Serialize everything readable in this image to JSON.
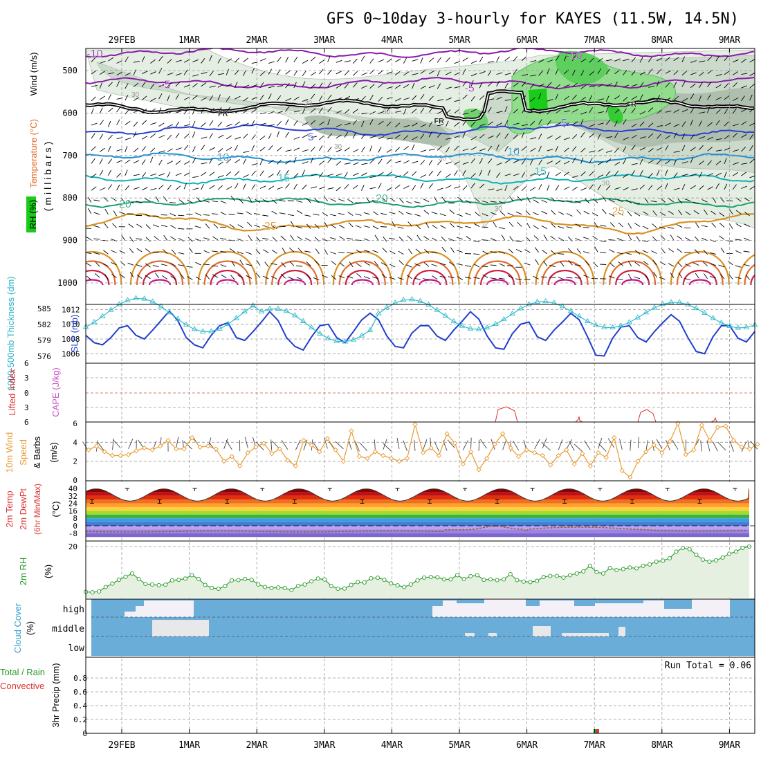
{
  "title": "GFS 0~10day 3-hourly for KAYES (11.5W, 14.5N)",
  "dates": [
    "29FEB",
    "1MAR",
    "2MAR",
    "3MAR",
    "4MAR",
    "5MAR",
    "6MAR",
    "7MAR",
    "8MAR",
    "9MAR"
  ],
  "colors": {
    "frame": "#000000",
    "grid": "#999999",
    "thickness": "#33bbcc",
    "slp": "#1f3fcc",
    "lifted": "#dd3333",
    "wind10": "#e89a30",
    "rh2m": "#2a9a2a",
    "cloud": "#6aadd8",
    "cloud_gap": "#f3f0f8",
    "precip_total": "#2a9a2a",
    "precip_conv": "#dd3333",
    "rh_fill": "#e6f0e0"
  },
  "upper_panel": {
    "rh_label": "RH (%)",
    "temp_label": "Temperature (°C)",
    "wind_label": "Wind (m/s)",
    "axis_label": "(millibars)",
    "pressure_ticks": [
      500,
      600,
      700,
      800,
      900,
      1000
    ],
    "isotherm_labels": [
      {
        "text": "-10",
        "color": "#8a1aa8",
        "p": 459,
        "day": -0.4
      },
      {
        "text": "-10",
        "color": "#8a1aa8",
        "p": 463,
        "day": 6.7
      },
      {
        "text": "-5",
        "color": "#8a1aa8",
        "p": 532,
        "day": 0.65
      },
      {
        "text": "-5",
        "color": "#8a1aa8",
        "p": 540,
        "day": 5.15
      },
      {
        "text": "FR",
        "color": "#000000",
        "p": 598,
        "day": 1.5
      },
      {
        "text": "FR",
        "color": "#000000",
        "p": 615,
        "day": 4.7
      },
      {
        "text": "FR",
        "color": "#000000",
        "p": 576,
        "day": 7.55
      },
      {
        "text": "5",
        "color": "#2a40d0",
        "p": 655,
        "day": 2.8
      },
      {
        "text": "5",
        "color": "#2a40d0",
        "p": 622,
        "day": 6.55
      },
      {
        "text": "10",
        "color": "#1f8fd0",
        "p": 703,
        "day": 1.5
      },
      {
        "text": "10",
        "color": "#1f8fd0",
        "p": 690,
        "day": 5.8
      },
      {
        "text": "15",
        "color": "#10b0b8",
        "p": 752,
        "day": 2.4
      },
      {
        "text": "15",
        "color": "#10b0b8",
        "p": 736,
        "day": 6.2
      },
      {
        "text": "20",
        "color": "#1aa070",
        "p": 813,
        "day": 0.05
      },
      {
        "text": "20",
        "color": "#1aa070",
        "p": 800,
        "day": 3.85
      },
      {
        "text": "25",
        "color": "#d89020",
        "p": 865,
        "day": 2.2
      },
      {
        "text": "25",
        "color": "#d89020",
        "p": 830,
        "day": 7.35
      }
    ],
    "rh_labels": [
      "30",
      "30",
      "30",
      "30",
      "30",
      "30",
      "30"
    ]
  },
  "slp_panel": {
    "left_label": "1000-500mb Thickness (dm)",
    "right_label": "SLP (mb)",
    "thickness_ticks": [
      585,
      582,
      579,
      576
    ],
    "slp_ticks": [
      1012,
      1010,
      1008,
      1006
    ]
  },
  "cape_panel": {
    "label1": "Lifted Index",
    "label2": "CAPE (J/kg)",
    "ticks": [
      "6",
      "3",
      "0",
      "3",
      "6"
    ]
  },
  "wind10_panel": {
    "label1": "10m Wind",
    "label2": "Speed",
    "label3": "& Barbs",
    "unit": "(m/s)",
    "ticks": [
      0,
      2,
      4,
      6
    ]
  },
  "temp_panel": {
    "label1": "2m Temp",
    "label2": "2m DewPt",
    "label3": "(6hr Min/Max)",
    "unit": "(°C)",
    "ticks": [
      40,
      32,
      24,
      16,
      8,
      0,
      -8
    ]
  },
  "rh_panel": {
    "label": "2m RH",
    "unit": "(%)",
    "ticks": [
      20
    ]
  },
  "cloud_panel": {
    "label1": "Cloud Cover",
    "label2": "(%)",
    "levels": [
      "high",
      "middle",
      "low"
    ]
  },
  "precip_panel": {
    "label1": "Total / Rain",
    "label2": "Convective",
    "label3": "3hr Precip (mm)",
    "ticks": [
      "0",
      "0.2",
      "0.4",
      "0.6",
      "0.8"
    ],
    "run_total": "Run Total = 0.06"
  },
  "chart_data": [
    {
      "type": "line",
      "title": "SLP (mb)",
      "x_unit": "days from 29FEB 00Z, 3-hourly",
      "ylim": [
        1005,
        1012.5
      ],
      "series": [
        {
          "name": "SLP (mb)",
          "values": [
            1008.5,
            1007.5,
            1007.2,
            1008.2,
            1009.5,
            1009.8,
            1008.5,
            1008.0,
            1009.2,
            1010.5,
            1011.8,
            1010.5,
            1008.2,
            1007.2,
            1006.8,
            1008.5,
            1009.8,
            1010.2,
            1008.2,
            1007.8,
            1009.0,
            1010.3,
            1011.7,
            1010.5,
            1008.2,
            1007.0,
            1006.5,
            1008.3,
            1009.8,
            1010.0,
            1008.2,
            1007.5,
            1009.0,
            1010.6,
            1011.5,
            1010.6,
            1008.4,
            1007.0,
            1006.8,
            1008.8,
            1009.8,
            1009.8,
            1008.4,
            1007.8,
            1009.2,
            1010.4,
            1011.7,
            1010.7,
            1008.4,
            1006.8,
            1006.6,
            1008.7,
            1010.0,
            1010.3,
            1008.3,
            1007.8,
            1009.2,
            1010.3,
            1011.5,
            1010.6,
            1008.3,
            1005.8,
            1005.7,
            1008.1,
            1009.6,
            1009.8,
            1008.2,
            1007.6,
            1009.0,
            1010.2,
            1011.3,
            1010.4,
            1008.2,
            1006.3,
            1006.0,
            1008.3,
            1009.8,
            1009.8,
            1008.1,
            1007.6,
            1009.0,
            1010.2,
            1011.2,
            1010.3,
            1008.1,
            1005.8,
            1005.6,
            1008.0,
            1009.5,
            1009.8,
            1008.2,
            1007.6,
            1008.9,
            1010.0,
            1011.0,
            1010.3,
            1008.2,
            1005.6,
            1005.5,
            1007.8,
            1009.5,
            1009.8,
            1008.2,
            1007.5,
            1008.8,
            1009.8,
            1010.8,
            1010.2,
            1008.0,
            1006.8,
            1007.8,
            1009.2,
            1009.6,
            1008.2,
            1007.3,
            1008.8,
            1009.5,
            1010.0,
            1009.7,
            1008.2,
            1007.8,
            1008.3,
            1009.1,
            1009.2,
            1008.2,
            1008.0,
            1008.6,
            1009.6,
            1010.5,
            1010.4,
            1008.8,
            1007.4,
            1007.7,
            1008.7,
            1009.3,
            1008.4,
            1007.5,
            1008.6,
            1009.5,
            1010.0,
            1009.3,
            1008.0,
            1007.6,
            1008.4,
            1009.6,
            1009.7,
            1008.4,
            1007.2,
            1008.3,
            1009.4,
            1009.9,
            1009.4,
            1007.9,
            1007.3,
            1008.0,
            1009.2,
            1009.7,
            1008.6,
            1007.5,
            1008.5,
            1009.3,
            1009.9,
            1009.4,
            1008.1,
            1007.5,
            1008.0,
            1009.2,
            1009.8,
            1008.7,
            1007.4,
            1008.4,
            1009.6,
            1010.0,
            1009.3,
            1007.9,
            1007.4,
            1008.2,
            1009.5,
            1009.9,
            1008.6,
            1007.4,
            1008.5,
            1009.5,
            1010.0,
            1009.3,
            1008.0,
            1007.3,
            1008.0,
            1009.3,
            1009.6,
            1008.5,
            1007.4,
            1008.6,
            1009.6,
            1010.0,
            1009.4,
            1008.1,
            1007.5,
            1008.2,
            1009.4,
            1009.8,
            1008.6,
            1007.4,
            1008.4,
            1009.4,
            1009.9,
            1009.3,
            1008.0,
            1007.3,
            1007.9,
            1009.1,
            1009.5,
            1008.4,
            1007.5,
            1008.4,
            1009.5,
            1009.9,
            1009.3,
            1008.1,
            1007.2,
            1007.9,
            1009.3,
            1009.6,
            1008.6,
            1007.5,
            1008.5
          ]
        }
      ]
    },
    {
      "type": "line",
      "title": "10m Wind Speed (m/s)",
      "x_unit": "days from 29FEB 00Z, 3-hourly",
      "ylim": [
        0,
        6
      ],
      "series": [
        {
          "name": "10m Wind Speed",
          "values": [
            3.2,
            3.6,
            3.0,
            2.6,
            2.6,
            2.7,
            3.1,
            3.4,
            3.2,
            3.6,
            4.2,
            3.3,
            3.3,
            4.5,
            3.5,
            3.6,
            3.3,
            2.0,
            2.5,
            1.5,
            2.9,
            3.5,
            3.9,
            2.8,
            3.3,
            2.1,
            1.5,
            4.2,
            3.7,
            3.0,
            4.4,
            3.2,
            2.0,
            5.2,
            2.5,
            2.3,
            3.0,
            2.6,
            2.3,
            2.0,
            2.3,
            5.9,
            2.9,
            3.4,
            2.6,
            4.9,
            3.9,
            1.7,
            3.0,
            1.1,
            2.3,
            3.8,
            4.9,
            3.4,
            2.5,
            3.2,
            2.9,
            2.6,
            1.6,
            2.6,
            3.2,
            1.7,
            2.8,
            1.5,
            2.9,
            2.4,
            4.5,
            1.0,
            0.3,
            2.0,
            3.0,
            3.7,
            2.9,
            4.1,
            6.0,
            2.7,
            3.2,
            5.8,
            4.2,
            5.6,
            5.7,
            4.2,
            3.5,
            3.3,
            3.8
          ]
        }
      ]
    },
    {
      "type": "line",
      "title": "2m RH (%)",
      "x_unit": "days from 29FEB 00Z, 3-hourly",
      "ylim": [
        0,
        22
      ],
      "series": [
        {
          "name": "2m RH",
          "values": [
            2.3,
            2.1,
            2.5,
            4.2,
            5.5,
            7.0,
            8.2,
            9.5,
            7.3,
            5.4,
            5.2,
            4.9,
            5.1,
            6.8,
            7.0,
            7.5,
            8.8,
            7.3,
            5.0,
            3.8,
            3.5,
            4.6,
            6.8,
            6.9,
            7.3,
            7.0,
            5.2,
            4.2,
            3.8,
            4.0,
            3.8,
            3.0,
            4.6,
            5.2,
            6.4,
            7.5,
            7.1,
            4.6,
            3.5,
            3.6,
            5.0,
            6.1,
            6.0,
            7.6,
            7.8,
            7.0,
            5.6,
            4.8,
            4.2,
            5.2,
            6.8,
            7.9,
            8.1,
            8.0,
            7.2,
            7.2,
            8.8,
            7.3,
            8.4,
            8.8,
            7.0,
            7.2,
            6.9,
            7.2,
            9.2,
            6.9,
            6.3,
            6.1,
            6.6,
            8.1,
            8.5,
            8.5,
            7.9,
            8.8,
            9.5,
            10.3,
            12.5,
            10.0,
            9.5,
            11.6,
            10.8,
            11.2,
            11.8,
            11.5,
            12.5,
            13.0,
            14.1,
            14.5,
            15.4,
            18.0,
            19.5,
            19.0,
            16.8,
            14.9,
            14.1,
            14.6,
            15.7,
            17.2,
            18.0,
            19.5,
            20.0
          ]
        }
      ]
    }
  ]
}
